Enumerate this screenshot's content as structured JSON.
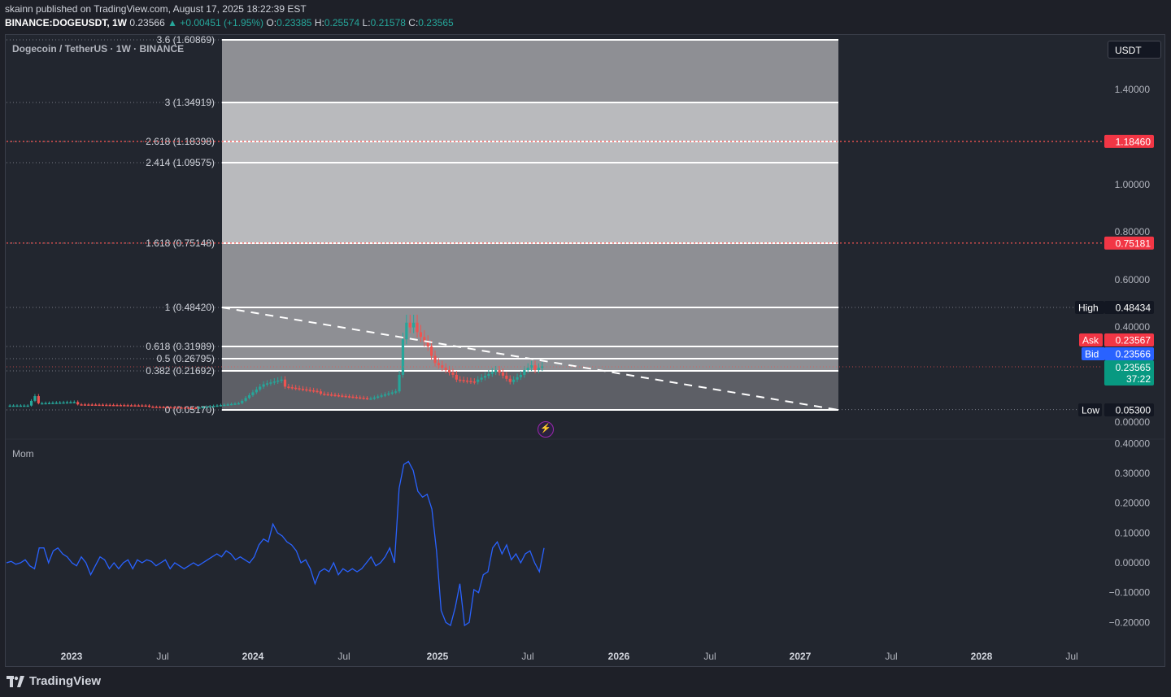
{
  "header": {
    "publisher_line": "skainn published on TradingView.com, August 17, 2025 18:22:39 EST",
    "author": "skainn",
    "symbol": "BINANCE:DOGEUSDT, 1W",
    "last": "0.23566",
    "change": "▲ +0.00451 (+1.95%)",
    "open_label": "O:",
    "open": "0.23385",
    "high_label": "H:",
    "high": "0.25574",
    "low_label": "L:",
    "low": "0.21578",
    "close_label": "C:",
    "close": "0.23565"
  },
  "legend": "Dogecoin / TetherUS · 1W · BINANCE",
  "currency_button": "USDT",
  "momentum_label": "Mom",
  "footer_brand": "TradingView",
  "colors": {
    "background": "#22262f",
    "up": "#26a69a",
    "down": "#ef5350",
    "mom_line": "#2962ff",
    "fib_dark": "#8e8f94",
    "fib_light": "#b9babd",
    "fib_band": "#5d5f66"
  },
  "chart_data": {
    "type": "candlestick",
    "price_axis": {
      "ticks": [
        "1.40000",
        "1.00000",
        "0.80000",
        "0.60000",
        "0.40000",
        "0.00000"
      ],
      "tick_values": [
        1.4,
        1.0,
        0.8,
        0.6,
        0.4,
        0.0
      ]
    },
    "time_axis": [
      "2023",
      "Jul",
      "2024",
      "Jul",
      "2025",
      "Jul",
      "2026",
      "Jul",
      "2027",
      "Jul",
      "2028",
      "Jul"
    ],
    "fib_levels": [
      {
        "label": "3.6 (1.60869)",
        "value": 1.60869
      },
      {
        "label": "3 (1.34919)",
        "value": 1.34919
      },
      {
        "label": "2.618 (1.18398)",
        "value": 1.18398
      },
      {
        "label": "2.414 (1.09575)",
        "value": 1.09575
      },
      {
        "label": "1.618 (0.75148)",
        "value": 0.75148
      },
      {
        "label": "1 (0.48420)",
        "value": 0.4842
      },
      {
        "label": "0.618 (0.31989)",
        "value": 0.31989
      },
      {
        "label": "0.5 (0.26795)",
        "value": 0.26795
      },
      {
        "label": "0.382 (0.21692)",
        "value": 0.21692
      },
      {
        "label": "0 (0.05170)",
        "value": 0.0517
      }
    ],
    "fib_overlap_label": "0.618 (0.31989)",
    "alert_lines": [
      {
        "label": "1.18460",
        "value": 1.1846
      },
      {
        "label": "0.75181",
        "value": 0.75181
      }
    ],
    "markers": [
      {
        "name": "High",
        "label": "High",
        "value_text": "0.48434",
        "value": 0.48434
      },
      {
        "name": "Ask",
        "label": "Ask",
        "value_text": "0.23567",
        "value": 0.23567
      },
      {
        "name": "Bid",
        "label": "Bid",
        "value_text": "0.23566",
        "value": 0.23566
      },
      {
        "name": "Last",
        "label": "0.23565",
        "value_text": "37:22",
        "value": 0.23565
      },
      {
        "name": "Low",
        "label": "Low",
        "value_text": "0.05300",
        "value": 0.053
      }
    ],
    "trendline": {
      "from": 0.4842,
      "to": 0.0517,
      "style": "dashed"
    }
  },
  "momentum": {
    "ticks": [
      "0.40000",
      "0.30000",
      "0.20000",
      "0.10000",
      "0.00000",
      "−0.10000",
      "−0.20000"
    ],
    "tick_values": [
      0.4,
      0.3,
      0.2,
      0.1,
      0.0,
      -0.1,
      -0.2
    ],
    "values": [
      0.0,
      0.005,
      -0.005,
      0.0,
      0.01,
      -0.01,
      -0.02,
      0.05,
      0.05,
      0.0,
      0.04,
      0.05,
      0.03,
      0.02,
      0.0,
      -0.01,
      0.02,
      0.0,
      -0.04,
      -0.01,
      0.02,
      0.01,
      -0.02,
      0.0,
      -0.02,
      0.0,
      0.01,
      -0.02,
      0.01,
      0.0,
      0.01,
      0.005,
      -0.01,
      0.0,
      0.01,
      -0.02,
      0.0,
      -0.01,
      -0.02,
      -0.01,
      0.0,
      -0.01,
      0.0,
      0.01,
      0.02,
      0.03,
      0.02,
      0.04,
      0.03,
      0.01,
      0.02,
      0.01,
      0.0,
      0.02,
      0.06,
      0.08,
      0.07,
      0.13,
      0.1,
      0.09,
      0.07,
      0.06,
      0.04,
      0.0,
      0.01,
      -0.02,
      -0.07,
      -0.03,
      -0.02,
      -0.03,
      0.0,
      -0.04,
      -0.02,
      -0.03,
      -0.02,
      -0.03,
      -0.02,
      0.0,
      0.02,
      -0.01,
      0.0,
      0.02,
      0.05,
      0.0,
      0.25,
      0.33,
      0.34,
      0.31,
      0.24,
      0.22,
      0.23,
      0.18,
      0.04,
      -0.16,
      -0.2,
      -0.21,
      -0.15,
      -0.07,
      -0.21,
      -0.2,
      -0.09,
      -0.1,
      -0.04,
      -0.03,
      0.05,
      0.07,
      0.03,
      0.06,
      0.01,
      0.03,
      0.0,
      0.03,
      0.04,
      0.0,
      -0.03,
      0.05
    ]
  }
}
